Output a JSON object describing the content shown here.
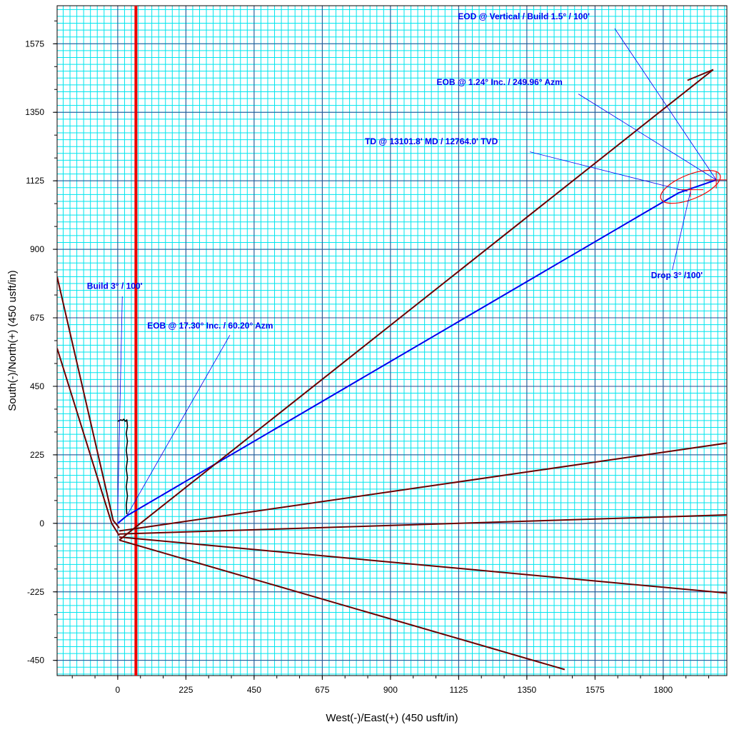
{
  "chart_data": {
    "type": "line",
    "title": "",
    "xlabel": "West(-)/East(+) (450 usft/in)",
    "ylabel": "South(-)/North(+) (450 usft/in)",
    "xlim": [
      -200,
      2010
    ],
    "ylim": [
      -500,
      1700
    ],
    "x_ticks": [
      0,
      225,
      450,
      675,
      900,
      1125,
      1350,
      1575,
      1800
    ],
    "y_ticks": [
      -450,
      -225,
      0,
      225,
      450,
      675,
      900,
      1125,
      1350,
      1575
    ],
    "grid": true,
    "colors": {
      "minor_grid": "#00e5ee",
      "major_grid": "#2b4a8f",
      "lease_line": "#ee0000",
      "plan": "#0000ee",
      "offset": "#6b0000",
      "actual": "#000000",
      "annotation": "#0000ee",
      "target": "#ee0000"
    },
    "lease_line_x": 60,
    "series": [
      {
        "role": "plan",
        "points": [
          [
            0,
            0
          ],
          [
            30,
            25
          ],
          [
            1850,
            1085
          ],
          [
            1975,
            1128
          ]
        ]
      },
      {
        "role": "actual",
        "points": [
          [
            0,
            335
          ],
          [
            10,
            340
          ],
          [
            15,
            338
          ],
          [
            20,
            342
          ],
          [
            25,
            335
          ],
          [
            30,
            340
          ],
          [
            32,
            320
          ],
          [
            28,
            295
          ],
          [
            32,
            270
          ],
          [
            28,
            240
          ],
          [
            32,
            210
          ],
          [
            28,
            180
          ],
          [
            32,
            150
          ],
          [
            28,
            120
          ],
          [
            32,
            90
          ],
          [
            28,
            60
          ],
          [
            30,
            30
          ]
        ]
      },
      {
        "role": "offset",
        "points": [
          [
            5,
            -55
          ],
          [
            1965,
            1490
          ]
        ]
      },
      {
        "role": "offset",
        "points": [
          [
            5,
            -25
          ],
          [
            2020,
            265
          ]
        ]
      },
      {
        "role": "offset",
        "points": [
          [
            5,
            -35
          ],
          [
            2020,
            28
          ]
        ]
      },
      {
        "role": "offset",
        "points": [
          [
            5,
            -45
          ],
          [
            2020,
            -230
          ]
        ]
      },
      {
        "role": "offset",
        "points": [
          [
            5,
            -55
          ],
          [
            1475,
            -480
          ]
        ]
      },
      {
        "role": "offset",
        "points": [
          [
            -200,
            810
          ],
          [
            -15,
            10
          ],
          [
            5,
            -15
          ]
        ]
      },
      {
        "role": "offset",
        "points": [
          [
            -200,
            575
          ],
          [
            -20,
            0
          ],
          [
            5,
            -40
          ]
        ]
      },
      {
        "role": "offset",
        "points": [
          [
            1880,
            1455
          ],
          [
            1965,
            1490
          ]
        ]
      }
    ],
    "target": {
      "center": [
        1890,
        1105
      ],
      "radius_x": 105,
      "radius_y": 40,
      "tilt_deg": -22
    },
    "annotations": [
      {
        "text": "EOD @ Vertical / Build 1.5° / 100'",
        "x": 1340,
        "y": 1655,
        "anchor": "middle",
        "target": [
          1975,
          1128
        ],
        "line_from": [
          1640,
          1625
        ]
      },
      {
        "text": "EOB @ 1.24° Inc. / 249.96° Azm",
        "x": 1260,
        "y": 1440,
        "anchor": "middle",
        "target": [
          1975,
          1128
        ],
        "line_from": [
          1520,
          1410
        ]
      },
      {
        "text": "TD @ 13101.8' MD / 12764.0' TVD",
        "x": 1035,
        "y": 1245,
        "anchor": "middle",
        "target": [
          1880,
          1090
        ],
        "line_from": [
          1360,
          1220
        ]
      },
      {
        "text": "Drop 3° /100'",
        "x": 1845,
        "y": 805,
        "anchor": "middle",
        "target": [
          1890,
          1090
        ],
        "line_from": [
          1830,
          832
        ]
      },
      {
        "text": "Build 3° / 100'",
        "x": -10,
        "y": 770,
        "anchor": "middle",
        "target": [
          0,
          40
        ],
        "line_from": [
          15,
          745
        ]
      },
      {
        "text": "EOB @ 17.30° Inc. / 60.20° Azm",
        "x": 305,
        "y": 640,
        "anchor": "middle",
        "target": [
          30,
          25
        ],
        "line_from": [
          370,
          618
        ]
      }
    ]
  }
}
